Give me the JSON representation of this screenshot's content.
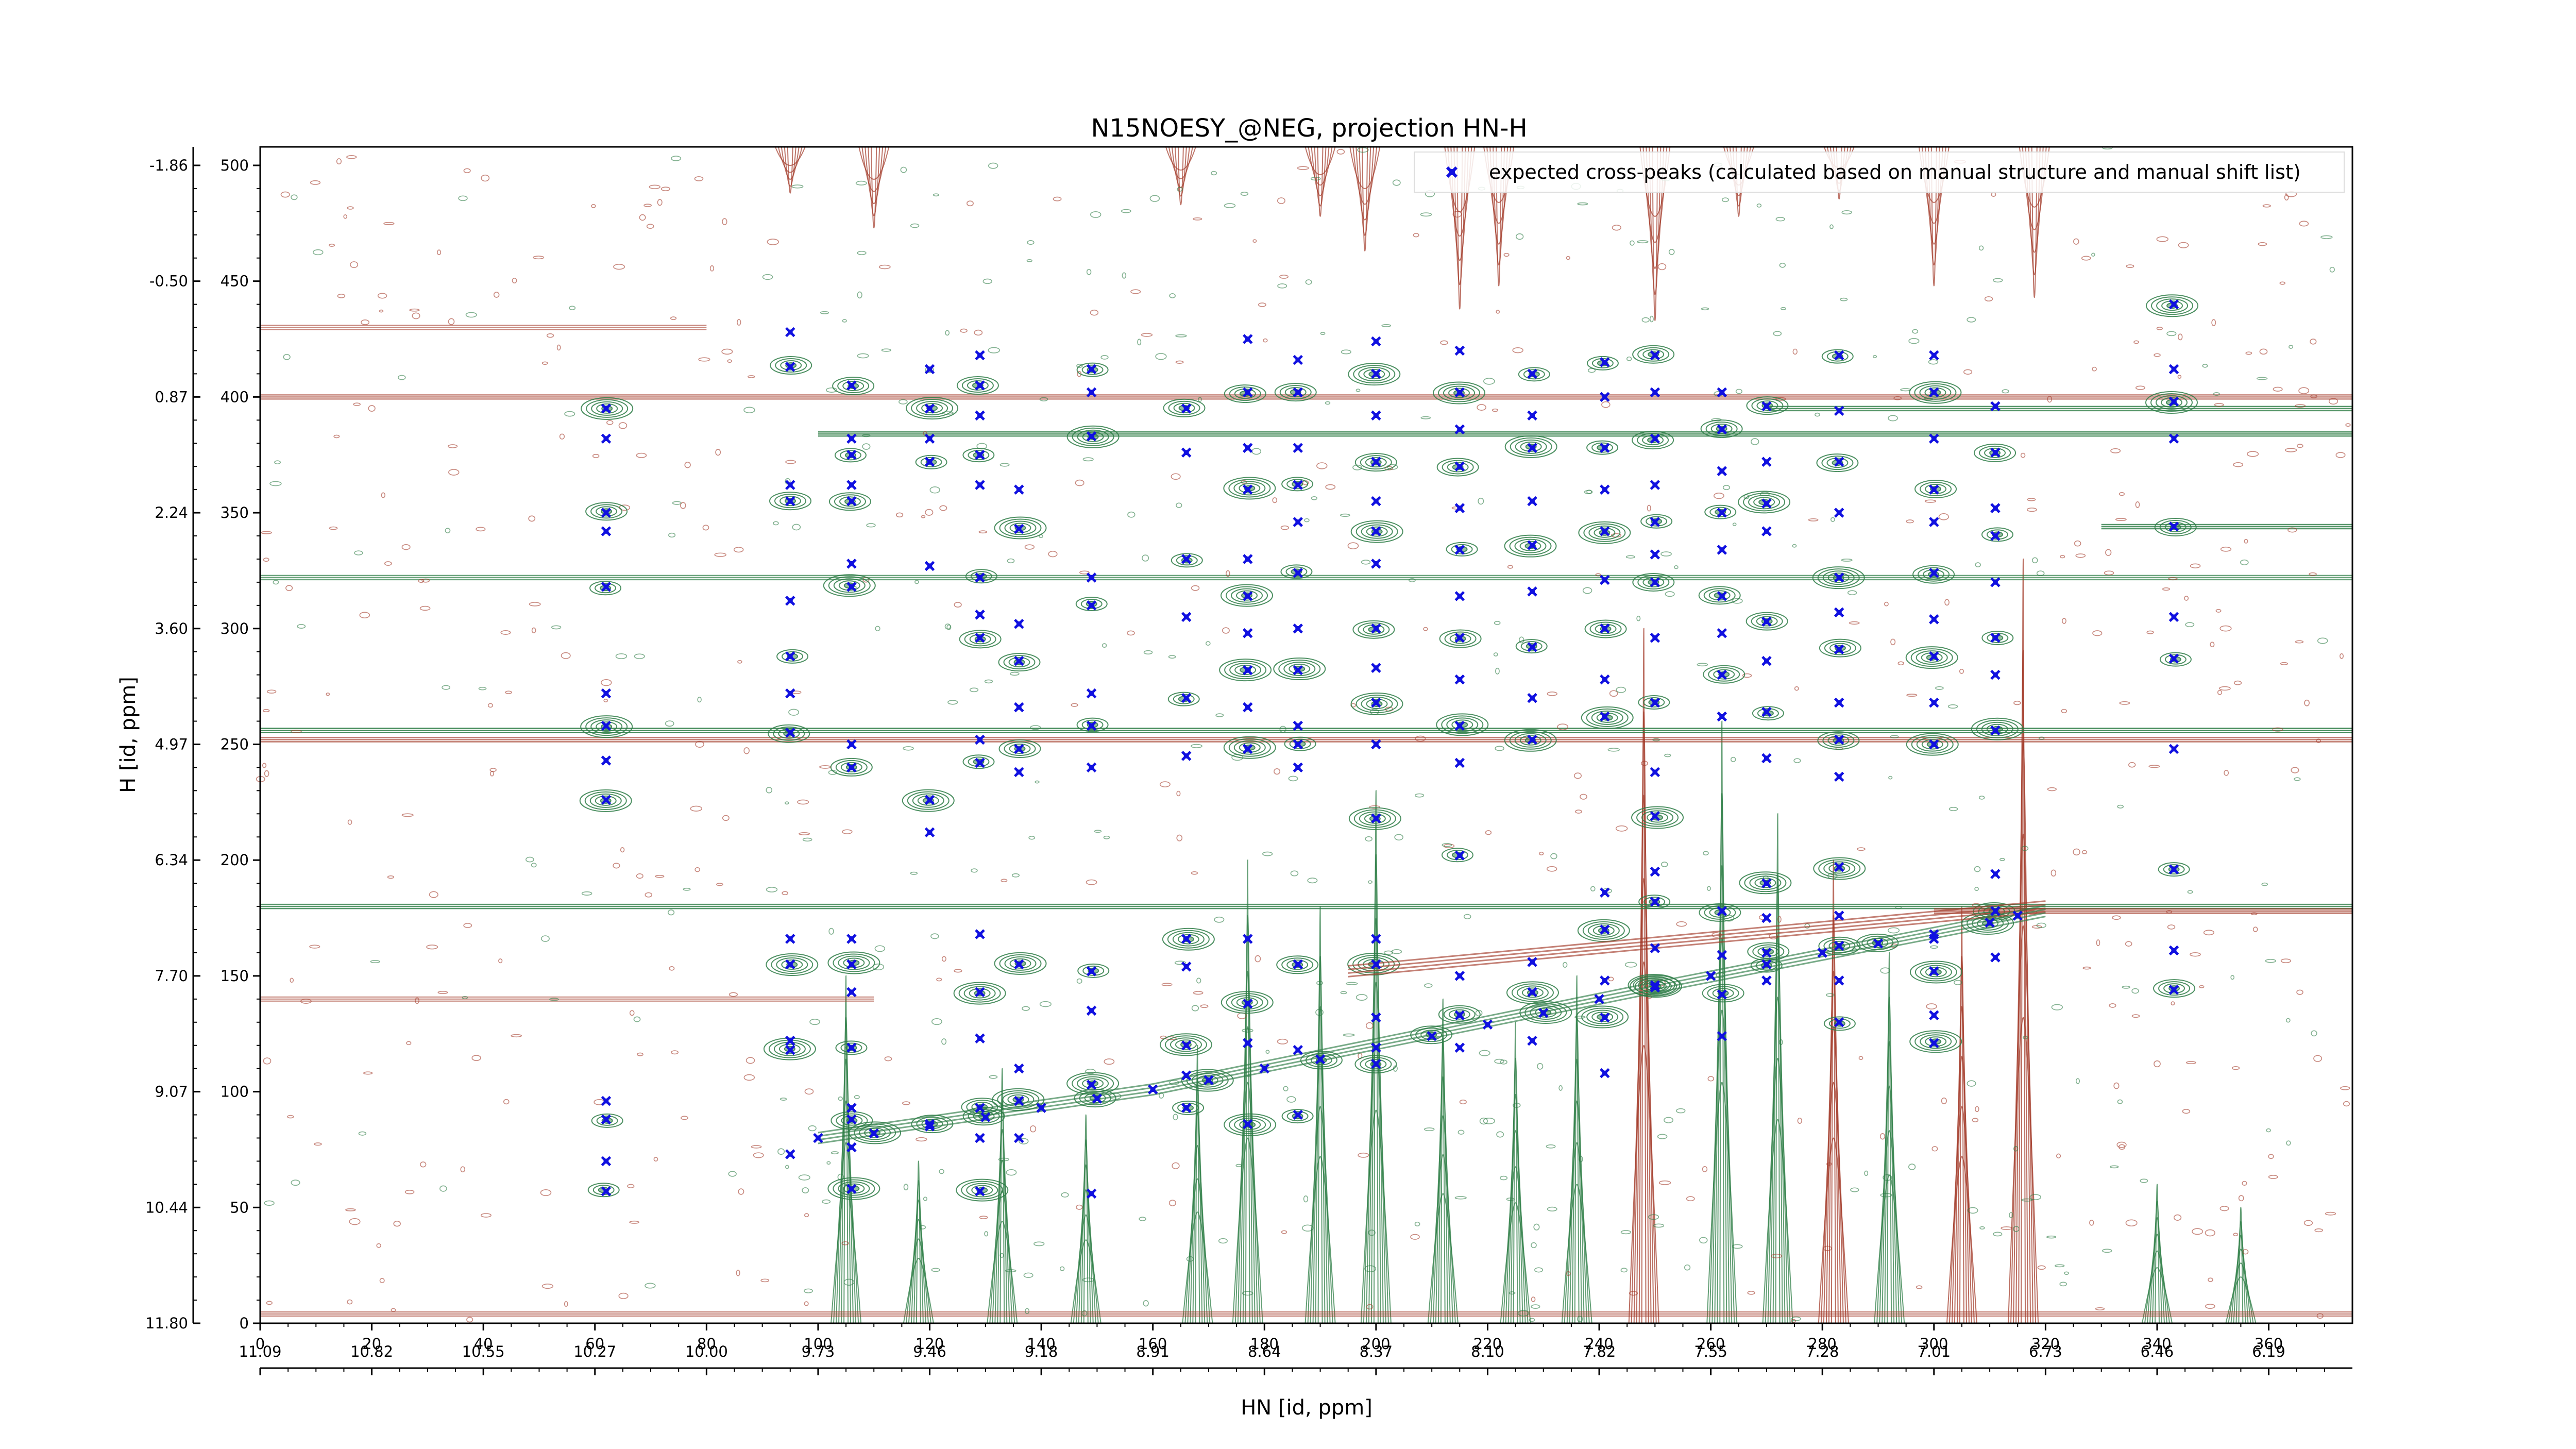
{
  "chart_data": {
    "type": "scatter",
    "title": "N15NOESY_@NEG, projection HN-H",
    "xlabel": "HN [id, ppm]",
    "ylabel": "H [id, ppm]",
    "xlim": [
      0,
      375
    ],
    "ylim": [
      0,
      508
    ],
    "x_index_ticks": [
      "0",
      "20",
      "40",
      "60",
      "80",
      "100",
      "120",
      "140",
      "160",
      "180",
      "200",
      "220",
      "240",
      "260",
      "280",
      "300",
      "320",
      "340",
      "360"
    ],
    "x_ppm_ticks": [
      "11.09",
      "10.82",
      "10.55",
      "10.27",
      "10.00",
      "9.73",
      "9.46",
      "9.18",
      "8.91",
      "8.64",
      "8.37",
      "8.10",
      "7.82",
      "7.55",
      "7.28",
      "7.01",
      "6.73",
      "6.46",
      "6.19"
    ],
    "y_index_ticks": [
      "0",
      "50",
      "100",
      "150",
      "200",
      "250",
      "300",
      "350",
      "400",
      "450",
      "500"
    ],
    "y_ppm_ticks": [
      "11.80",
      "10.44",
      "9.07",
      "7.70",
      "6.34",
      "4.97",
      "3.60",
      "2.24",
      "0.87",
      "-0.50",
      "-1.86"
    ],
    "legend": {
      "position": "top-right",
      "entries": [
        "expected cross-peaks (calculated based on manual structure and manual shift list)"
      ]
    },
    "grid": false,
    "colors": {
      "expected": "#1010e0",
      "positive_contour": "#2e7d46",
      "negative_contour": "#a33b2a"
    },
    "series": [
      {
        "name": "expected cross-peaks (calculated based on manual structure and manual shift list)",
        "points": [
          [
            62,
            395
          ],
          [
            62,
            382
          ],
          [
            62,
            350
          ],
          [
            62,
            342
          ],
          [
            62,
            318
          ],
          [
            62,
            272
          ],
          [
            62,
            258
          ],
          [
            62,
            243
          ],
          [
            62,
            226
          ],
          [
            62,
            96
          ],
          [
            62,
            88
          ],
          [
            62,
            70
          ],
          [
            62,
            57
          ],
          [
            95,
            428
          ],
          [
            95,
            413
          ],
          [
            95,
            362
          ],
          [
            95,
            355
          ],
          [
            95,
            312
          ],
          [
            95,
            288
          ],
          [
            95,
            272
          ],
          [
            95,
            255
          ],
          [
            95,
            166
          ],
          [
            95,
            155
          ],
          [
            95,
            122
          ],
          [
            95,
            118
          ],
          [
            95,
            73
          ],
          [
            106,
            405
          ],
          [
            106,
            382
          ],
          [
            106,
            375
          ],
          [
            106,
            362
          ],
          [
            106,
            355
          ],
          [
            106,
            328
          ],
          [
            106,
            318
          ],
          [
            106,
            250
          ],
          [
            106,
            240
          ],
          [
            106,
            166
          ],
          [
            106,
            155
          ],
          [
            106,
            143
          ],
          [
            106,
            119
          ],
          [
            106,
            93
          ],
          [
            106,
            88
          ],
          [
            106,
            76
          ],
          [
            106,
            58
          ],
          [
            120,
            412
          ],
          [
            120,
            395
          ],
          [
            120,
            382
          ],
          [
            120,
            372
          ],
          [
            120,
            327
          ],
          [
            120,
            226
          ],
          [
            120,
            212
          ],
          [
            120,
            86
          ],
          [
            129,
            418
          ],
          [
            129,
            405
          ],
          [
            129,
            392
          ],
          [
            129,
            375
          ],
          [
            129,
            362
          ],
          [
            129,
            322
          ],
          [
            129,
            306
          ],
          [
            129,
            296
          ],
          [
            129,
            252
          ],
          [
            129,
            242
          ],
          [
            129,
            168
          ],
          [
            129,
            143
          ],
          [
            129,
            123
          ],
          [
            129,
            93
          ],
          [
            129,
            80
          ],
          [
            129,
            57
          ],
          [
            136,
            360
          ],
          [
            136,
            343
          ],
          [
            136,
            302
          ],
          [
            136,
            286
          ],
          [
            136,
            266
          ],
          [
            136,
            248
          ],
          [
            136,
            238
          ],
          [
            136,
            155
          ],
          [
            136,
            110
          ],
          [
            136,
            96
          ],
          [
            136,
            80
          ],
          [
            149,
            412
          ],
          [
            149,
            402
          ],
          [
            149,
            383
          ],
          [
            149,
            322
          ],
          [
            149,
            310
          ],
          [
            149,
            272
          ],
          [
            149,
            258
          ],
          [
            149,
            240
          ],
          [
            149,
            152
          ],
          [
            149,
            135
          ],
          [
            149,
            103
          ],
          [
            149,
            56
          ],
          [
            166,
            395
          ],
          [
            166,
            376
          ],
          [
            166,
            330
          ],
          [
            166,
            305
          ],
          [
            166,
            270
          ],
          [
            166,
            245
          ],
          [
            166,
            166
          ],
          [
            166,
            154
          ],
          [
            166,
            120
          ],
          [
            166,
            107
          ],
          [
            166,
            93
          ],
          [
            177,
            425
          ],
          [
            177,
            402
          ],
          [
            177,
            378
          ],
          [
            177,
            360
          ],
          [
            177,
            330
          ],
          [
            177,
            314
          ],
          [
            177,
            298
          ],
          [
            177,
            282
          ],
          [
            177,
            266
          ],
          [
            177,
            248
          ],
          [
            177,
            166
          ],
          [
            177,
            138
          ],
          [
            177,
            121
          ],
          [
            177,
            86
          ],
          [
            186,
            416
          ],
          [
            186,
            402
          ],
          [
            186,
            378
          ],
          [
            186,
            362
          ],
          [
            186,
            346
          ],
          [
            186,
            324
          ],
          [
            186,
            300
          ],
          [
            186,
            282
          ],
          [
            186,
            258
          ],
          [
            186,
            250
          ],
          [
            186,
            240
          ],
          [
            186,
            155
          ],
          [
            186,
            118
          ],
          [
            186,
            90
          ],
          [
            200,
            424
          ],
          [
            200,
            410
          ],
          [
            200,
            392
          ],
          [
            200,
            372
          ],
          [
            200,
            355
          ],
          [
            200,
            342
          ],
          [
            200,
            328
          ],
          [
            200,
            300
          ],
          [
            200,
            283
          ],
          [
            200,
            268
          ],
          [
            200,
            250
          ],
          [
            200,
            218
          ],
          [
            200,
            166
          ],
          [
            200,
            155
          ],
          [
            200,
            132
          ],
          [
            200,
            112
          ],
          [
            215,
            420
          ],
          [
            215,
            402
          ],
          [
            215,
            386
          ],
          [
            215,
            370
          ],
          [
            215,
            352
          ],
          [
            215,
            334
          ],
          [
            215,
            314
          ],
          [
            215,
            296
          ],
          [
            215,
            278
          ],
          [
            215,
            258
          ],
          [
            215,
            242
          ],
          [
            215,
            202
          ],
          [
            215,
            150
          ],
          [
            215,
            133
          ],
          [
            215,
            119
          ],
          [
            228,
            410
          ],
          [
            228,
            392
          ],
          [
            228,
            378
          ],
          [
            228,
            355
          ],
          [
            228,
            336
          ],
          [
            228,
            316
          ],
          [
            228,
            292
          ],
          [
            228,
            270
          ],
          [
            228,
            252
          ],
          [
            228,
            156
          ],
          [
            228,
            143
          ],
          [
            228,
            122
          ],
          [
            241,
            415
          ],
          [
            241,
            400
          ],
          [
            241,
            378
          ],
          [
            241,
            360
          ],
          [
            241,
            342
          ],
          [
            241,
            321
          ],
          [
            241,
            300
          ],
          [
            241,
            278
          ],
          [
            241,
            262
          ],
          [
            241,
            186
          ],
          [
            241,
            170
          ],
          [
            241,
            148
          ],
          [
            241,
            132
          ],
          [
            241,
            108
          ],
          [
            250,
            418
          ],
          [
            250,
            402
          ],
          [
            250,
            382
          ],
          [
            250,
            362
          ],
          [
            250,
            346
          ],
          [
            250,
            332
          ],
          [
            250,
            320
          ],
          [
            250,
            296
          ],
          [
            250,
            268
          ],
          [
            250,
            238
          ],
          [
            250,
            219
          ],
          [
            250,
            195
          ],
          [
            250,
            182
          ],
          [
            250,
            162
          ],
          [
            250,
            146
          ],
          [
            262,
            402
          ],
          [
            262,
            386
          ],
          [
            262,
            368
          ],
          [
            262,
            350
          ],
          [
            262,
            334
          ],
          [
            262,
            314
          ],
          [
            262,
            298
          ],
          [
            262,
            280
          ],
          [
            262,
            262
          ],
          [
            262,
            178
          ],
          [
            262,
            159
          ],
          [
            262,
            142
          ],
          [
            262,
            124
          ],
          [
            270,
            396
          ],
          [
            270,
            372
          ],
          [
            270,
            354
          ],
          [
            270,
            342
          ],
          [
            270,
            303
          ],
          [
            270,
            286
          ],
          [
            270,
            264
          ],
          [
            270,
            244
          ],
          [
            270,
            190
          ],
          [
            270,
            175
          ],
          [
            270,
            160
          ],
          [
            270,
            148
          ],
          [
            283,
            418
          ],
          [
            283,
            394
          ],
          [
            283,
            372
          ],
          [
            283,
            350
          ],
          [
            283,
            322
          ],
          [
            283,
            307
          ],
          [
            283,
            291
          ],
          [
            283,
            268
          ],
          [
            283,
            252
          ],
          [
            283,
            236
          ],
          [
            283,
            197
          ],
          [
            283,
            176
          ],
          [
            283,
            163
          ],
          [
            283,
            148
          ],
          [
            283,
            130
          ],
          [
            300,
            418
          ],
          [
            300,
            402
          ],
          [
            300,
            382
          ],
          [
            300,
            360
          ],
          [
            300,
            346
          ],
          [
            300,
            324
          ],
          [
            300,
            304
          ],
          [
            300,
            288
          ],
          [
            300,
            268
          ],
          [
            300,
            250
          ],
          [
            300,
            166
          ],
          [
            300,
            152
          ],
          [
            300,
            133
          ],
          [
            300,
            121
          ],
          [
            311,
            396
          ],
          [
            311,
            376
          ],
          [
            311,
            352
          ],
          [
            311,
            340
          ],
          [
            311,
            320
          ],
          [
            311,
            296
          ],
          [
            311,
            280
          ],
          [
            311,
            256
          ],
          [
            311,
            194
          ],
          [
            311,
            178
          ],
          [
            311,
            158
          ],
          [
            343,
            440
          ],
          [
            343,
            412
          ],
          [
            343,
            398
          ],
          [
            343,
            382
          ],
          [
            343,
            344
          ],
          [
            343,
            305
          ],
          [
            343,
            287
          ],
          [
            343,
            248
          ],
          [
            343,
            196
          ],
          [
            343,
            161
          ],
          [
            343,
            144
          ],
          [
            100,
            80
          ],
          [
            110,
            82
          ],
          [
            120,
            85
          ],
          [
            130,
            89
          ],
          [
            140,
            93
          ],
          [
            150,
            97
          ],
          [
            160,
            101
          ],
          [
            170,
            105
          ],
          [
            180,
            110
          ],
          [
            190,
            114
          ],
          [
            200,
            119
          ],
          [
            210,
            124
          ],
          [
            220,
            129
          ],
          [
            230,
            134
          ],
          [
            240,
            140
          ],
          [
            250,
            145
          ],
          [
            260,
            150
          ],
          [
            270,
            155
          ],
          [
            280,
            160
          ],
          [
            290,
            164
          ],
          [
            300,
            168
          ],
          [
            310,
            173
          ],
          [
            315,
            176
          ]
        ]
      }
    ]
  }
}
